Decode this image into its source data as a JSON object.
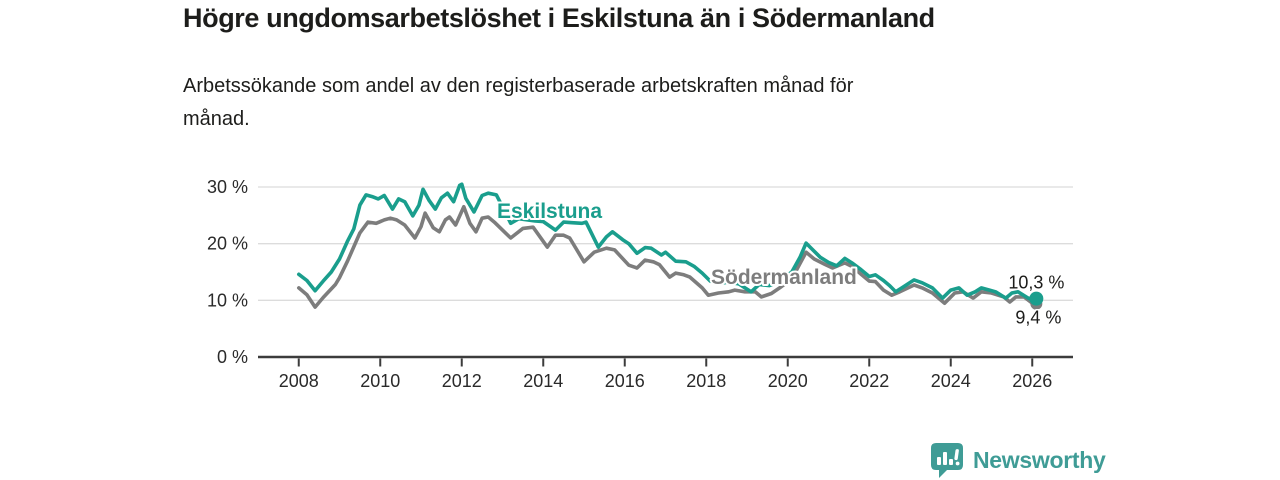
{
  "header": {
    "title": "Högre ungdomsarbetslöshet i Eskilstuna än i Södermanland",
    "subtitle_line1": "Arbetssökande som andel av den registerbaserade arbetskraften månad för",
    "subtitle_line2": "månad."
  },
  "footer": {
    "brand": "Newsworthy"
  },
  "chart_data": {
    "type": "line",
    "title": "Högre ungdomsarbetslöshet i Eskilstuna än i Södermanland",
    "subtitle": "Arbetssökande som andel av den registerbaserade arbetskraften månad för månad.",
    "grid": "horizontal",
    "legend_position": "inline-labels",
    "x_axis": {
      "range": [
        2007,
        2027
      ],
      "ticks": [
        2008,
        2010,
        2012,
        2014,
        2016,
        2018,
        2020,
        2022,
        2024,
        2026
      ],
      "labels": [
        "2008",
        "2010",
        "2012",
        "2014",
        "2016",
        "2018",
        "2020",
        "2022",
        "2024",
        "2026"
      ]
    },
    "y_axis": {
      "range": [
        0,
        33
      ],
      "unit": "%",
      "ticks": [
        0,
        10,
        20,
        30
      ],
      "labels": [
        "0 %",
        "10 %",
        "20 %",
        "30 %"
      ]
    },
    "colors": {
      "grid": "#dcdcdc",
      "axis": "#3c3c3c",
      "tick_text": "#2a2a2a",
      "annotation_text": "#1d1d1b"
    },
    "series": [
      {
        "name": "Eskilstuna",
        "color": "#1A9E8D",
        "end_label": "10,3 %",
        "end_value": 10.3,
        "points": [
          [
            2008.0,
            14.6
          ],
          [
            2008.2,
            13.5
          ],
          [
            2008.4,
            11.7
          ],
          [
            2008.6,
            13.4
          ],
          [
            2008.8,
            15.0
          ],
          [
            2009.0,
            17.3
          ],
          [
            2009.2,
            20.5
          ],
          [
            2009.35,
            22.6
          ],
          [
            2009.5,
            26.8
          ],
          [
            2009.65,
            28.6
          ],
          [
            2009.8,
            28.3
          ],
          [
            2009.95,
            27.9
          ],
          [
            2010.1,
            28.5
          ],
          [
            2010.3,
            26.1
          ],
          [
            2010.45,
            27.9
          ],
          [
            2010.6,
            27.4
          ],
          [
            2010.8,
            24.9
          ],
          [
            2010.95,
            26.8
          ],
          [
            2011.05,
            29.6
          ],
          [
            2011.2,
            27.6
          ],
          [
            2011.35,
            26.1
          ],
          [
            2011.5,
            28.1
          ],
          [
            2011.65,
            28.9
          ],
          [
            2011.8,
            27.4
          ],
          [
            2011.95,
            30.3
          ],
          [
            2012.0,
            30.5
          ],
          [
            2012.1,
            28.0
          ],
          [
            2012.3,
            25.6
          ],
          [
            2012.5,
            28.5
          ],
          [
            2012.65,
            28.9
          ],
          [
            2012.85,
            28.6
          ],
          [
            2013.0,
            26.5
          ],
          [
            2013.2,
            23.6
          ],
          [
            2013.4,
            24.4
          ],
          [
            2013.6,
            24.2
          ],
          [
            2013.8,
            24.0
          ],
          [
            2014.0,
            23.9
          ],
          [
            2014.3,
            22.4
          ],
          [
            2014.5,
            23.8
          ],
          [
            2014.7,
            23.7
          ],
          [
            2014.95,
            23.6
          ],
          [
            2015.05,
            23.8
          ],
          [
            2015.35,
            19.4
          ],
          [
            2015.55,
            21.2
          ],
          [
            2015.7,
            22.1
          ],
          [
            2015.95,
            20.7
          ],
          [
            2016.1,
            20.0
          ],
          [
            2016.3,
            18.3
          ],
          [
            2016.5,
            19.3
          ],
          [
            2016.65,
            19.2
          ],
          [
            2016.9,
            18.0
          ],
          [
            2017.0,
            18.5
          ],
          [
            2017.25,
            16.9
          ],
          [
            2017.5,
            16.8
          ],
          [
            2017.7,
            16.0
          ],
          [
            2017.9,
            14.8
          ],
          [
            2018.1,
            13.4
          ],
          [
            2018.3,
            13.0
          ],
          [
            2018.55,
            13.2
          ],
          [
            2018.8,
            12.9
          ],
          [
            2019.1,
            11.5
          ],
          [
            2019.3,
            12.8
          ],
          [
            2019.55,
            12.6
          ],
          [
            2019.8,
            13.4
          ],
          [
            2020.1,
            15.0
          ],
          [
            2020.3,
            17.6
          ],
          [
            2020.45,
            20.1
          ],
          [
            2020.6,
            19.0
          ],
          [
            2020.8,
            17.6
          ],
          [
            2021.0,
            16.7
          ],
          [
            2021.2,
            16.1
          ],
          [
            2021.4,
            17.4
          ],
          [
            2021.6,
            16.5
          ],
          [
            2021.8,
            15.4
          ],
          [
            2022.0,
            14.2
          ],
          [
            2022.15,
            14.5
          ],
          [
            2022.35,
            13.5
          ],
          [
            2022.5,
            12.6
          ],
          [
            2022.65,
            11.5
          ],
          [
            2022.8,
            12.2
          ],
          [
            2023.1,
            13.6
          ],
          [
            2023.3,
            13.1
          ],
          [
            2023.55,
            12.2
          ],
          [
            2023.8,
            10.4
          ],
          [
            2024.0,
            11.8
          ],
          [
            2024.2,
            12.2
          ],
          [
            2024.4,
            10.9
          ],
          [
            2024.6,
            11.5
          ],
          [
            2024.75,
            12.2
          ],
          [
            2024.95,
            11.8
          ],
          [
            2025.1,
            11.5
          ],
          [
            2025.35,
            10.4
          ],
          [
            2025.5,
            11.3
          ],
          [
            2025.65,
            11.5
          ],
          [
            2025.9,
            10.4
          ],
          [
            2026.0,
            10.1
          ],
          [
            2026.1,
            10.3
          ]
        ]
      },
      {
        "name": "Södermanland",
        "color": "#7D7D7D",
        "end_label": "9,4 %",
        "end_value": 9.4,
        "points": [
          [
            2008.0,
            12.2
          ],
          [
            2008.2,
            11.0
          ],
          [
            2008.4,
            8.8
          ],
          [
            2008.6,
            10.5
          ],
          [
            2008.9,
            12.8
          ],
          [
            2009.0,
            14.0
          ],
          [
            2009.2,
            17.0
          ],
          [
            2009.5,
            21.9
          ],
          [
            2009.7,
            23.8
          ],
          [
            2009.9,
            23.6
          ],
          [
            2010.1,
            24.2
          ],
          [
            2010.25,
            24.5
          ],
          [
            2010.4,
            24.2
          ],
          [
            2010.6,
            23.3
          ],
          [
            2010.85,
            21.0
          ],
          [
            2011.0,
            23.0
          ],
          [
            2011.1,
            25.4
          ],
          [
            2011.3,
            22.8
          ],
          [
            2011.45,
            22.1
          ],
          [
            2011.6,
            24.2
          ],
          [
            2011.7,
            24.7
          ],
          [
            2011.85,
            23.3
          ],
          [
            2012.05,
            26.5
          ],
          [
            2012.2,
            23.6
          ],
          [
            2012.35,
            22.1
          ],
          [
            2012.5,
            24.5
          ],
          [
            2012.65,
            24.7
          ],
          [
            2012.8,
            23.8
          ],
          [
            2013.0,
            22.4
          ],
          [
            2013.2,
            21.0
          ],
          [
            2013.5,
            22.7
          ],
          [
            2013.75,
            22.9
          ],
          [
            2014.1,
            19.4
          ],
          [
            2014.3,
            21.5
          ],
          [
            2014.5,
            21.5
          ],
          [
            2014.65,
            21.0
          ],
          [
            2015.0,
            16.8
          ],
          [
            2015.25,
            18.5
          ],
          [
            2015.55,
            19.2
          ],
          [
            2015.75,
            18.9
          ],
          [
            2016.1,
            16.2
          ],
          [
            2016.3,
            15.7
          ],
          [
            2016.5,
            17.1
          ],
          [
            2016.7,
            16.8
          ],
          [
            2016.85,
            16.3
          ],
          [
            2017.1,
            14.1
          ],
          [
            2017.25,
            14.8
          ],
          [
            2017.45,
            14.5
          ],
          [
            2017.6,
            14.1
          ],
          [
            2017.9,
            12.2
          ],
          [
            2018.05,
            10.9
          ],
          [
            2018.3,
            11.3
          ],
          [
            2018.55,
            11.5
          ],
          [
            2018.7,
            11.8
          ],
          [
            2018.95,
            11.5
          ],
          [
            2019.2,
            11.5
          ],
          [
            2019.35,
            10.6
          ],
          [
            2019.6,
            11.2
          ],
          [
            2019.8,
            12.2
          ],
          [
            2020.1,
            13.8
          ],
          [
            2020.3,
            16.5
          ],
          [
            2020.45,
            18.5
          ],
          [
            2020.65,
            17.3
          ],
          [
            2020.9,
            16.4
          ],
          [
            2021.1,
            15.7
          ],
          [
            2021.4,
            16.6
          ],
          [
            2021.6,
            15.9
          ],
          [
            2021.8,
            14.6
          ],
          [
            2022.0,
            13.4
          ],
          [
            2022.15,
            13.3
          ],
          [
            2022.35,
            11.8
          ],
          [
            2022.55,
            10.9
          ],
          [
            2022.75,
            11.5
          ],
          [
            2023.1,
            12.7
          ],
          [
            2023.3,
            12.2
          ],
          [
            2023.55,
            11.3
          ],
          [
            2023.85,
            9.5
          ],
          [
            2024.1,
            11.3
          ],
          [
            2024.3,
            11.5
          ],
          [
            2024.55,
            10.4
          ],
          [
            2024.75,
            11.5
          ],
          [
            2025.0,
            11.3
          ],
          [
            2025.3,
            10.6
          ],
          [
            2025.45,
            9.7
          ],
          [
            2025.6,
            10.6
          ],
          [
            2025.8,
            10.6
          ],
          [
            2026.0,
            9.5
          ],
          [
            2026.1,
            9.4
          ]
        ]
      }
    ]
  }
}
